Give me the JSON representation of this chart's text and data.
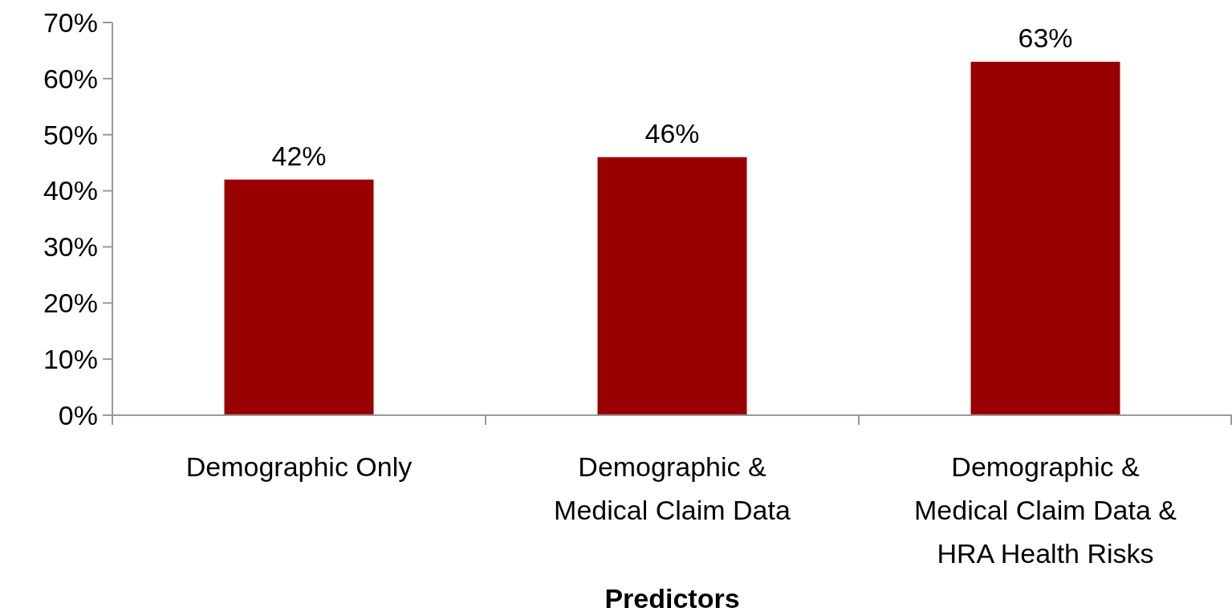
{
  "chart_data": {
    "type": "bar",
    "xlabel": "Predictors",
    "categories": [
      "Demographic Only",
      "Demographic & Medical Claim Data",
      "Demographic & Medical Claim Data & HRA Health Risks"
    ],
    "values": [
      42,
      46,
      63
    ],
    "color": "#990000",
    "value_labels": [
      "42%",
      "46%",
      "63%"
    ],
    "ylim": [
      0,
      70
    ],
    "yticks": [
      {
        "value": 0,
        "label": "0%"
      },
      {
        "value": 10,
        "label": "10%"
      },
      {
        "value": 20,
        "label": "20%"
      },
      {
        "value": 30,
        "label": "30%"
      },
      {
        "value": 40,
        "label": "40%"
      },
      {
        "value": 50,
        "label": "50%"
      },
      {
        "value": 60,
        "label": "60%"
      },
      {
        "value": 70,
        "label": "70%"
      }
    ],
    "grid": false
  }
}
